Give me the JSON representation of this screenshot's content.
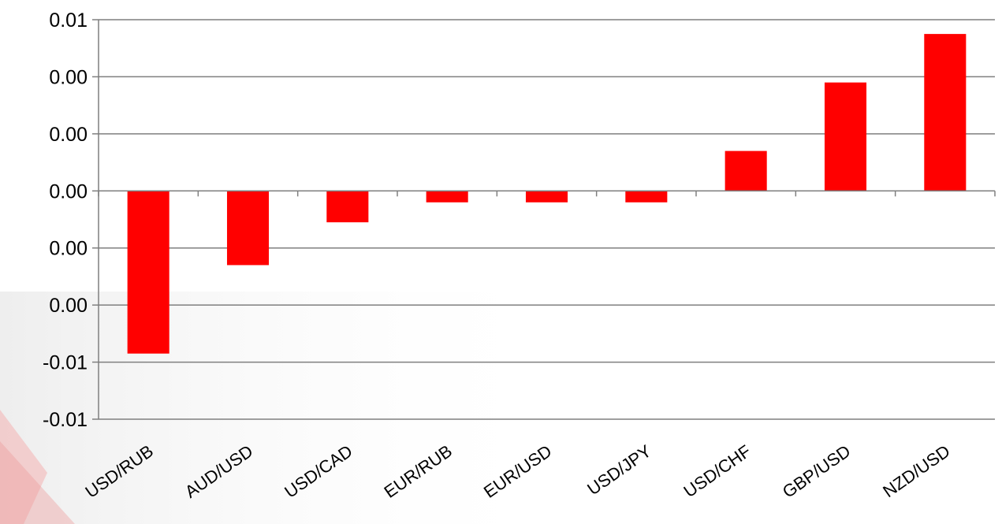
{
  "chart_data": {
    "type": "bar",
    "title": "",
    "xlabel": "",
    "ylabel": "",
    "categories": [
      "USD/RUB",
      "AUD/USD",
      "USD/CAD",
      "EUR/RUB",
      "EUR/USD",
      "USD/JPY",
      "USD/CHF",
      "GBP/USD",
      "NZD/USD"
    ],
    "series": [
      {
        "values": [
          -0.0057,
          -0.0026,
          -0.0011,
          -0.0004,
          -0.0004,
          -0.0004,
          0.0014,
          0.0038,
          0.0055
        ]
      }
    ],
    "ylim": [
      -0.008,
      0.006
    ],
    "ytick_values": [
      -0.008,
      -0.006,
      -0.004,
      -0.002,
      0.0,
      0.002,
      0.004,
      0.006
    ],
    "ytick_labels": [
      "-0.01",
      "-0.01",
      "0.00",
      "0.00",
      "0.00",
      "0.00",
      "0.00",
      "0.01"
    ],
    "grid": true,
    "legend": "none",
    "colors": {
      "bar": "#ff0000",
      "grid": "#7f7f7f",
      "axis": "#7f7f7f"
    }
  }
}
